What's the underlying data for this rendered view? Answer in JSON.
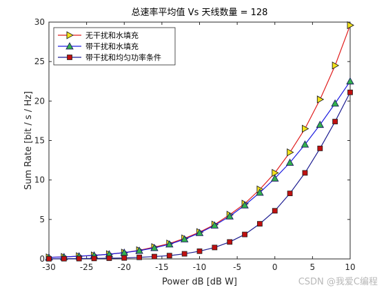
{
  "chart_data": {
    "type": "line",
    "title": "总速率平均值 Vs 天线数量 = 128",
    "xlabel": "Power dB [dB W]",
    "ylabel": "Sum Rate [bit / s / Hz]",
    "xlim": [
      -30,
      10
    ],
    "ylim": [
      0,
      30
    ],
    "xticks": [
      -30,
      -25,
      -20,
      -15,
      -10,
      -5,
      0,
      5,
      10
    ],
    "yticks": [
      0,
      5,
      10,
      15,
      20,
      25,
      30
    ],
    "grid": false,
    "legend_position": "top-left",
    "x": [
      -30,
      -28,
      -26,
      -24,
      -22,
      -20,
      -18,
      -16,
      -14,
      -12,
      -10,
      -8,
      -6,
      -4,
      -2,
      0,
      2,
      4,
      6,
      8,
      10
    ],
    "series": [
      {
        "name": "无干扰和水填充",
        "color": "#e01b1b",
        "marker": "triangle-right",
        "marker_fill": "#f2e21a",
        "values": [
          0.2,
          0.25,
          0.35,
          0.45,
          0.6,
          0.8,
          1.1,
          1.5,
          1.95,
          2.6,
          3.4,
          4.35,
          5.6,
          7.0,
          8.8,
          10.9,
          13.5,
          16.5,
          20.2,
          24.5,
          29.6
        ]
      },
      {
        "name": "带干扰和水填充",
        "color": "#1b1be0",
        "marker": "triangle-up",
        "marker_fill": "#33b24c",
        "values": [
          0.2,
          0.25,
          0.35,
          0.45,
          0.6,
          0.8,
          1.05,
          1.4,
          1.85,
          2.5,
          3.3,
          4.25,
          5.4,
          6.8,
          8.4,
          10.2,
          12.2,
          14.5,
          17.0,
          19.7,
          22.5
        ]
      },
      {
        "name": "带干扰和均匀功率条件",
        "color": "#1b1b90",
        "marker": "square",
        "marker_fill": "#c01010",
        "values": [
          0.02,
          0.03,
          0.04,
          0.06,
          0.09,
          0.12,
          0.2,
          0.3,
          0.42,
          0.65,
          0.98,
          1.45,
          2.15,
          3.1,
          4.45,
          6.1,
          8.3,
          10.9,
          14.0,
          17.4,
          21.1
        ]
      }
    ]
  },
  "watermark": "CSDN @我爱C编程"
}
